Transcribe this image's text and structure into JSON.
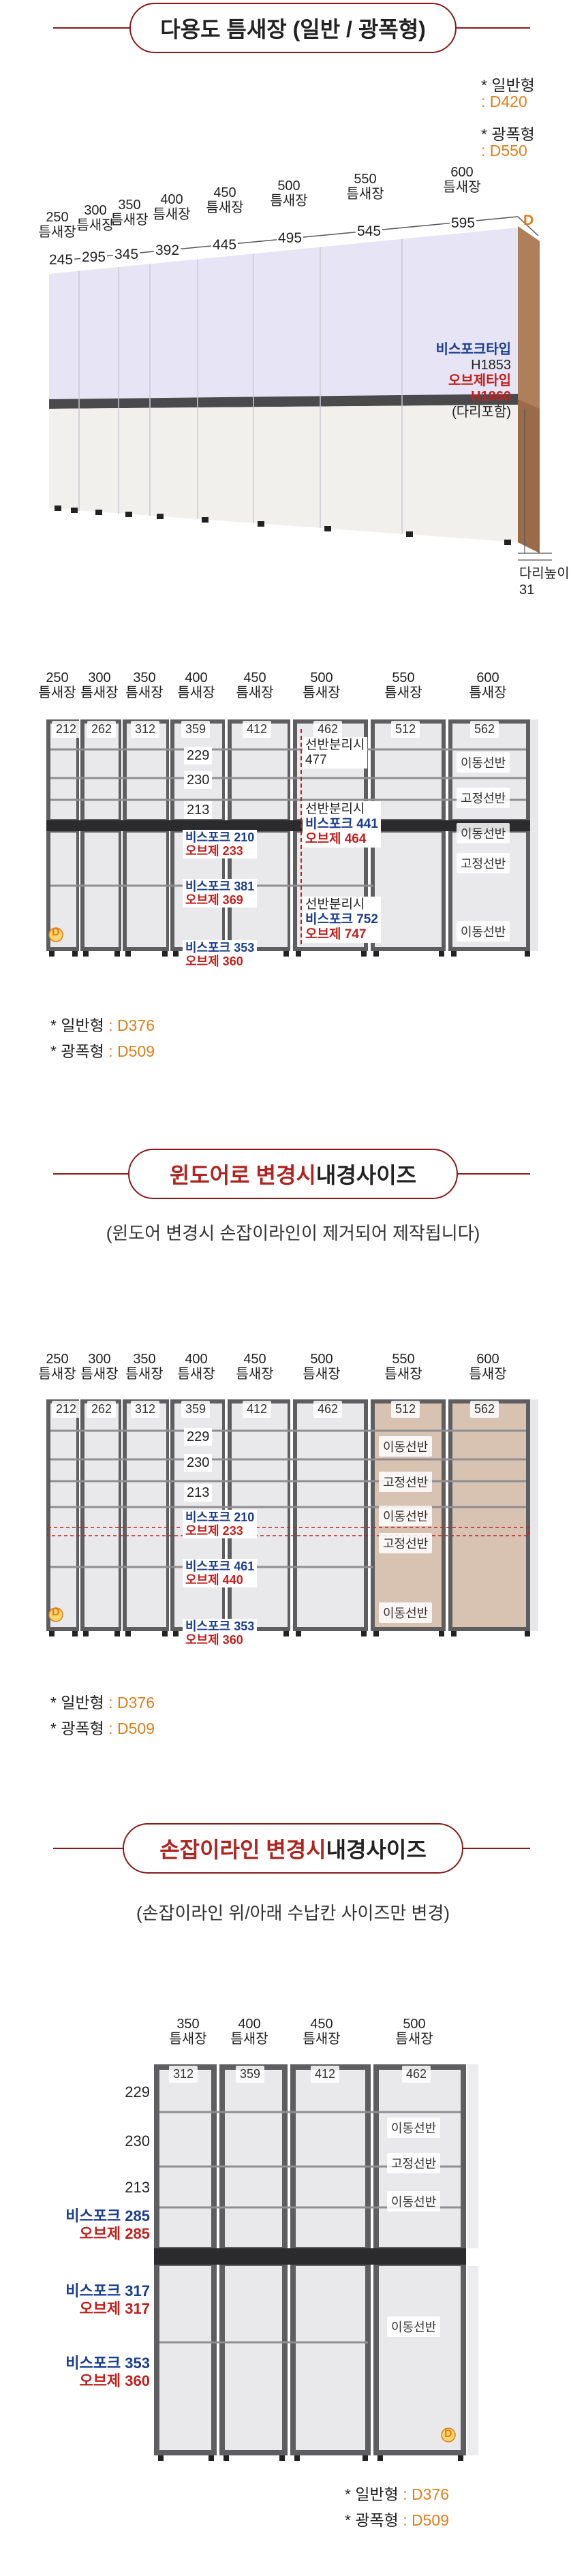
{
  "section1": {
    "title": "다용도 틈새장 (일반 / 광폭형)",
    "depth_normal_label": "* 일반형",
    "depth_normal_value": ": D420",
    "depth_wide_label": "* 광폭형",
    "depth_wide_value": ": D550",
    "columns": [
      {
        "size": "250",
        "unit": "틈새장",
        "inner": "245"
      },
      {
        "size": "300",
        "unit": "틈새장",
        "inner": "295"
      },
      {
        "size": "350",
        "unit": "틈새장",
        "inner": "345"
      },
      {
        "size": "400",
        "unit": "틈새장",
        "inner": "392"
      },
      {
        "size": "450",
        "unit": "틈새장",
        "inner": "445"
      },
      {
        "size": "500",
        "unit": "틈새장",
        "inner": "495"
      },
      {
        "size": "550",
        "unit": "틈새장",
        "inner": "545"
      },
      {
        "size": "600",
        "unit": "틈새장",
        "inner": "595"
      }
    ],
    "depth_marker": "D",
    "height_bisforc_label": "비스포크타입",
    "height_bisforc_value": "H1853",
    "height_objet_label": "오브제타입",
    "height_objet_value": "H1860",
    "height_note": "(다리포함)",
    "leg_label": "다리높이",
    "leg_value": "31"
  },
  "section2": {
    "columns": [
      {
        "size": "250",
        "unit": "틈새장",
        "inner": "212"
      },
      {
        "size": "300",
        "unit": "틈새장",
        "inner": "262"
      },
      {
        "size": "350",
        "unit": "틈새장",
        "inner": "312"
      },
      {
        "size": "400",
        "unit": "틈새장",
        "inner": "359"
      },
      {
        "size": "450",
        "unit": "틈새장",
        "inner": "412"
      },
      {
        "size": "500",
        "unit": "틈새장",
        "inner": "462"
      },
      {
        "size": "550",
        "unit": "틈새장",
        "inner": "512"
      },
      {
        "size": "600",
        "unit": "틈새장",
        "inner": "562"
      }
    ],
    "shelf_229": "229",
    "shelf_230": "230",
    "shelf_213": "213",
    "bis_210": "비스포크 210",
    "ov_233": "오브제 233",
    "bis_381": "비스포크 381",
    "ov_369": "오브제 369",
    "bis_353": "비스포크 353",
    "ov_360": "오브제 360",
    "split1_label": "선반분리시",
    "split1_value": "477",
    "split2_label": "선반분리시",
    "split2_bis": "비스포크 441",
    "split2_ov": "오브제 464",
    "split3_label": "선반분리시",
    "split3_bis": "비스포크 752",
    "split3_ov": "오브제 747",
    "movable": "이동선반",
    "fixed": "고정선반",
    "depth_marker": "D",
    "depth_normal_label": "* 일반형",
    "depth_normal_value": ": D376",
    "depth_wide_label": "* 광폭형",
    "depth_wide_value": ": D509"
  },
  "section3": {
    "title_red": "윈도어로 변경시",
    "title_dark": " 내경사이즈",
    "subtitle": "(윈도어 변경시 손잡이라인이 제거되어 제작됩니다)",
    "columns": [
      {
        "size": "250",
        "unit": "틈새장",
        "inner": "212"
      },
      {
        "size": "300",
        "unit": "틈새장",
        "inner": "262"
      },
      {
        "size": "350",
        "unit": "틈새장",
        "inner": "312"
      },
      {
        "size": "400",
        "unit": "틈새장",
        "inner": "359"
      },
      {
        "size": "450",
        "unit": "틈새장",
        "inner": "412"
      },
      {
        "size": "500",
        "unit": "틈새장",
        "inner": "462"
      },
      {
        "size": "550",
        "unit": "틈새장",
        "inner": "512"
      },
      {
        "size": "600",
        "unit": "틈새장",
        "inner": "562"
      }
    ],
    "shelf_229": "229",
    "shelf_230": "230",
    "shelf_213": "213",
    "bis_210": "비스포크 210",
    "ov_233": "오브제 233",
    "bis_461": "비스포크 461",
    "ov_440": "오브제 440",
    "bis_353": "비스포크 353",
    "ov_360": "오브제 360",
    "movable": "이동선반",
    "fixed": "고정선반",
    "depth_marker": "D",
    "depth_normal_label": "* 일반형",
    "depth_normal_value": ": D376",
    "depth_wide_label": "* 광폭형",
    "depth_wide_value": ": D509"
  },
  "section4": {
    "title_red": "손잡이라인 변경시",
    "title_dark": " 내경사이즈",
    "subtitle": "(손잡이라인 위/아래 수납칸 사이즈만 변경)",
    "columns": [
      {
        "size": "350",
        "unit": "틈새장",
        "inner": "312"
      },
      {
        "size": "400",
        "unit": "틈새장",
        "inner": "359"
      },
      {
        "size": "450",
        "unit": "틈새장",
        "inner": "412"
      },
      {
        "size": "500",
        "unit": "틈새장",
        "inner": "462"
      }
    ],
    "shelf_229": "229",
    "shelf_230": "230",
    "shelf_213": "213",
    "bis_285": "비스포크 285",
    "ov_285": "오브제 285",
    "bis_317": "비스포크 317",
    "ov_317": "오브제 317",
    "bis_353": "비스포크 353",
    "ov_360": "오브제 360",
    "movable": "이동선반",
    "fixed": "고정선반",
    "depth_marker": "D",
    "depth_normal_label": "* 일반형",
    "depth_normal_value": ": D376",
    "depth_wide_label": "* 광폭형",
    "depth_wide_value": ": D509"
  },
  "colors": {
    "accent_red": "#b0231f",
    "bespoke_blue": "#1a3d8f",
    "depth_orange": "#e07d1a",
    "cabinet_gray": "#5e5e60",
    "door_lavender": "#e6e4f5",
    "door_white": "#f1f0ec"
  }
}
